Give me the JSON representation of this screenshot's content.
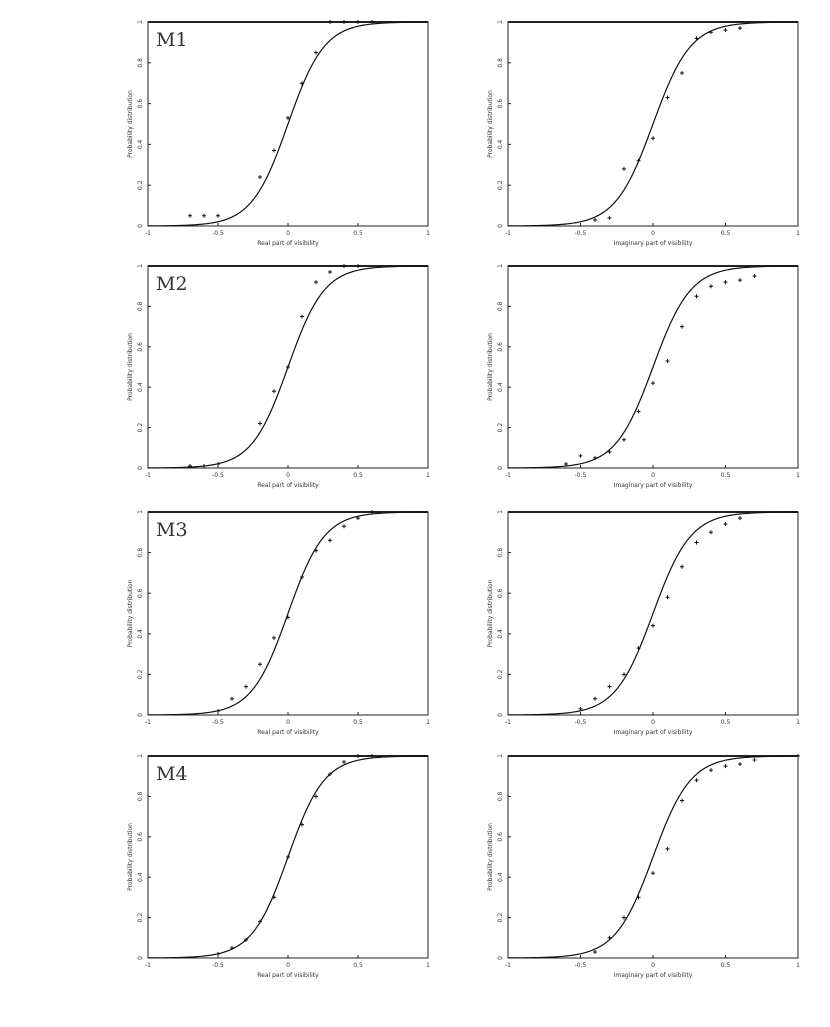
{
  "chart_data": [
    {
      "panel": "M1",
      "type": "line",
      "label": "M1",
      "xlabel": "Real part of visibility",
      "ylabel": "Probability distribution",
      "xlim": [
        -1,
        1
      ],
      "ylim": [
        0,
        1
      ],
      "xticks": [
        "-1",
        "-0.5",
        "0",
        "0.5",
        "1"
      ],
      "yticks": [
        "0",
        "0.2",
        "0.4",
        "0.6",
        "0.8",
        "1"
      ],
      "points": [
        [
          -0.7,
          0.05
        ],
        [
          -0.6,
          0.05
        ],
        [
          -0.5,
          0.05
        ],
        [
          -0.2,
          0.24
        ],
        [
          -0.1,
          0.37
        ],
        [
          0.0,
          0.53
        ],
        [
          0.1,
          0.7
        ],
        [
          0.2,
          0.85
        ],
        [
          0.3,
          1.0
        ],
        [
          0.4,
          1.0
        ],
        [
          0.5,
          1.0
        ],
        [
          0.6,
          1.0
        ]
      ]
    },
    {
      "panel": "M1-imag",
      "type": "line",
      "xlabel": "Imaginary part of visibility",
      "ylabel": "Probability distribution",
      "xlim": [
        -1,
        1
      ],
      "ylim": [
        0,
        1
      ],
      "xticks": [
        "-1",
        "-0.5",
        "0",
        "0.5",
        "1"
      ],
      "yticks": [
        "0",
        "0.2",
        "0.4",
        "0.6",
        "0.8",
        "1"
      ],
      "points": [
        [
          -0.4,
          0.03
        ],
        [
          -0.3,
          0.04
        ],
        [
          -0.2,
          0.28
        ],
        [
          -0.1,
          0.32
        ],
        [
          0.0,
          0.43
        ],
        [
          0.1,
          0.63
        ],
        [
          0.2,
          0.75
        ],
        [
          0.3,
          0.92
        ],
        [
          0.4,
          0.95
        ],
        [
          0.5,
          0.96
        ],
        [
          0.6,
          0.97
        ]
      ]
    },
    {
      "panel": "M2",
      "type": "line",
      "label": "M2",
      "xlabel": "Real part of visibility",
      "ylabel": "Probability distribution",
      "xlim": [
        -1,
        1
      ],
      "ylim": [
        0,
        1
      ],
      "xticks": [
        "-1",
        "-0.5",
        "0",
        "0.5",
        "1"
      ],
      "yticks": [
        "0",
        "0.2",
        "0.4",
        "0.6",
        "0.8",
        "1"
      ],
      "points": [
        [
          -0.7,
          0.01
        ],
        [
          -0.6,
          0.01
        ],
        [
          -0.5,
          0.02
        ],
        [
          -0.2,
          0.22
        ],
        [
          -0.1,
          0.38
        ],
        [
          0.0,
          0.5
        ],
        [
          0.1,
          0.75
        ],
        [
          0.2,
          0.92
        ],
        [
          0.3,
          0.97
        ],
        [
          0.4,
          1.0
        ],
        [
          0.5,
          1.0
        ]
      ]
    },
    {
      "panel": "M2-imag",
      "type": "line",
      "xlabel": "Imaginary part of visibility",
      "ylabel": "Probability distribution",
      "xlim": [
        -1,
        1
      ],
      "ylim": [
        0,
        1
      ],
      "xticks": [
        "-1",
        "-0.5",
        "0",
        "0.5",
        "1"
      ],
      "yticks": [
        "0",
        "0.2",
        "0.4",
        "0.6",
        "0.8",
        "1"
      ],
      "points": [
        [
          -0.6,
          0.02
        ],
        [
          -0.5,
          0.06
        ],
        [
          -0.4,
          0.05
        ],
        [
          -0.3,
          0.08
        ],
        [
          -0.2,
          0.14
        ],
        [
          -0.1,
          0.28
        ],
        [
          0.0,
          0.42
        ],
        [
          0.1,
          0.53
        ],
        [
          0.2,
          0.7
        ],
        [
          0.3,
          0.85
        ],
        [
          0.4,
          0.9
        ],
        [
          0.5,
          0.92
        ],
        [
          0.6,
          0.93
        ],
        [
          0.7,
          0.95
        ]
      ]
    },
    {
      "panel": "M3",
      "type": "line",
      "label": "M3",
      "xlabel": "Real part of visibility",
      "ylabel": "Probability distribution",
      "xlim": [
        -1,
        1
      ],
      "ylim": [
        0,
        1
      ],
      "xticks": [
        "-1",
        "-0.5",
        "0",
        "0.5",
        "1"
      ],
      "yticks": [
        "0",
        "0.2",
        "0.4",
        "0.6",
        "0.8",
        "1"
      ],
      "points": [
        [
          -0.5,
          0.02
        ],
        [
          -0.4,
          0.08
        ],
        [
          -0.3,
          0.14
        ],
        [
          -0.2,
          0.25
        ],
        [
          -0.1,
          0.38
        ],
        [
          0.0,
          0.48
        ],
        [
          0.1,
          0.68
        ],
        [
          0.2,
          0.81
        ],
        [
          0.3,
          0.86
        ],
        [
          0.4,
          0.93
        ],
        [
          0.5,
          0.97
        ],
        [
          0.6,
          1.0
        ]
      ]
    },
    {
      "panel": "M3-imag",
      "type": "line",
      "xlabel": "Imaginary part of visibility",
      "ylabel": "Probability distribution",
      "xlim": [
        -1,
        1
      ],
      "ylim": [
        0,
        1
      ],
      "xticks": [
        "-1",
        "-0.5",
        "0",
        "0.5",
        "1"
      ],
      "yticks": [
        "0",
        "0.2",
        "0.4",
        "0.6",
        "0.8",
        "1"
      ],
      "points": [
        [
          -0.5,
          0.03
        ],
        [
          -0.4,
          0.08
        ],
        [
          -0.3,
          0.14
        ],
        [
          -0.2,
          0.2
        ],
        [
          -0.1,
          0.33
        ],
        [
          0.0,
          0.44
        ],
        [
          0.1,
          0.58
        ],
        [
          0.2,
          0.73
        ],
        [
          0.3,
          0.85
        ],
        [
          0.4,
          0.9
        ],
        [
          0.5,
          0.94
        ],
        [
          0.6,
          0.97
        ]
      ]
    },
    {
      "panel": "M4",
      "type": "line",
      "label": "M4",
      "xlabel": "Real part of visibility",
      "ylabel": "Probability distribution",
      "xlim": [
        -1,
        1
      ],
      "ylim": [
        0,
        1
      ],
      "xticks": [
        "-1",
        "-0.5",
        "0",
        "0.5",
        "1"
      ],
      "yticks": [
        "0",
        "0.2",
        "0.4",
        "0.6",
        "0.8",
        "1"
      ],
      "points": [
        [
          -0.5,
          0.02
        ],
        [
          -0.4,
          0.05
        ],
        [
          -0.3,
          0.09
        ],
        [
          -0.2,
          0.18
        ],
        [
          -0.1,
          0.3
        ],
        [
          0.0,
          0.5
        ],
        [
          0.1,
          0.66
        ],
        [
          0.2,
          0.8
        ],
        [
          0.3,
          0.91
        ],
        [
          0.4,
          0.97
        ],
        [
          0.5,
          1.0
        ],
        [
          0.6,
          1.0
        ]
      ]
    },
    {
      "panel": "M4-imag",
      "type": "line",
      "xlabel": "Imaginary part of visibility",
      "ylabel": "Probability distribution",
      "xlim": [
        -1,
        1
      ],
      "ylim": [
        0,
        1
      ],
      "xticks": [
        "-1",
        "-0.5",
        "0",
        "0.5",
        "1"
      ],
      "yticks": [
        "0",
        "0.2",
        "0.4",
        "0.6",
        "0.8",
        "1"
      ],
      "points": [
        [
          -0.4,
          0.03
        ],
        [
          -0.3,
          0.1
        ],
        [
          -0.2,
          0.2
        ],
        [
          -0.1,
          0.3
        ],
        [
          0.0,
          0.42
        ],
        [
          0.1,
          0.54
        ],
        [
          0.2,
          0.78
        ],
        [
          0.3,
          0.88
        ],
        [
          0.4,
          0.93
        ],
        [
          0.5,
          0.95
        ],
        [
          0.6,
          0.96
        ],
        [
          0.7,
          0.98
        ],
        [
          1.0,
          1.0
        ]
      ]
    }
  ]
}
